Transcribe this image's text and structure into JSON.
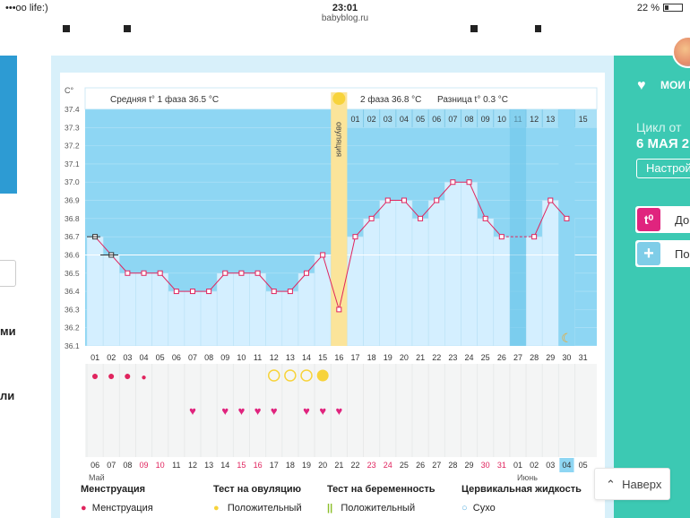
{
  "status": {
    "carrier": "•••oo life:)",
    "time": "23:01",
    "url": "babyblog.ru",
    "battery": "22 %"
  },
  "left_panel": {
    "text_1": "ми",
    "text_2": "ли"
  },
  "chart_header": {
    "phase1": "Средняя t° 1 фаза 36.5 °C",
    "phase2": "2 фаза 36.8 °C",
    "diff": "Разница t° 0.3 °C",
    "ovulation": "овуляция",
    "unit": "C°"
  },
  "chart_data": {
    "type": "line",
    "title": "",
    "ylabel": "C°",
    "ylim": [
      36.1,
      37.4
    ],
    "y_ticks": [
      "36.1",
      "36.2",
      "36.3",
      "36.4",
      "36.5",
      "36.6",
      "36.7",
      "36.8",
      "36.9",
      "37.0",
      "37.1",
      "37.2",
      "37.3",
      "37.4"
    ],
    "cycle_days": [
      "01",
      "02",
      "03",
      "04",
      "05",
      "06",
      "07",
      "08",
      "09",
      "10",
      "11",
      "12",
      "13",
      "14",
      "15",
      "16",
      "17",
      "18",
      "19",
      "20",
      "21",
      "22",
      "23",
      "24",
      "25",
      "26",
      "27",
      "28",
      "29",
      "30",
      "31"
    ],
    "phase2_days": [
      "01",
      "02",
      "03",
      "04",
      "05",
      "06",
      "07",
      "08",
      "09",
      "10",
      "11",
      "12",
      "13",
      "14",
      "15"
    ],
    "dates": [
      "06",
      "07",
      "08",
      "09",
      "10",
      "11",
      "12",
      "13",
      "14",
      "15",
      "16",
      "17",
      "18",
      "19",
      "20",
      "21",
      "22",
      "23",
      "24",
      "25",
      "26",
      "27",
      "28",
      "29",
      "30",
      "31",
      "01",
      "02",
      "03",
      "04",
      "05"
    ],
    "date_red": [
      false,
      false,
      false,
      true,
      true,
      false,
      false,
      false,
      false,
      true,
      true,
      false,
      false,
      false,
      false,
      false,
      false,
      true,
      true,
      false,
      false,
      false,
      false,
      false,
      true,
      true,
      false,
      false,
      false,
      false,
      false
    ],
    "month_may": "Май",
    "month_june": "Июнь",
    "temperatures": [
      36.7,
      36.6,
      36.5,
      36.5,
      36.5,
      36.4,
      36.4,
      36.4,
      36.5,
      36.5,
      36.5,
      36.4,
      36.4,
      36.5,
      36.6,
      36.3,
      36.7,
      36.8,
      36.9,
      36.9,
      36.8,
      36.9,
      37.0,
      37.0,
      36.8,
      36.7,
      null,
      36.7,
      36.9,
      36.8,
      null
    ],
    "coverline": 36.6,
    "ovulation_day": 16,
    "today_day": 30,
    "menstruation_days": [
      1,
      2,
      3,
      4
    ],
    "ovulation_test_days": [
      12,
      13,
      14,
      15
    ],
    "ovulation_test_positive_day": 15,
    "heart_days": [
      7,
      9,
      10,
      11,
      12,
      14,
      15,
      16
    ]
  },
  "legend": {
    "menstruation_title": "Менструация",
    "menstruation_item": "Менструация",
    "ovulation_test_title": "Тест на овуляцию",
    "ovulation_test_item": "Положительный",
    "pregnancy_test_title": "Тест на беременность",
    "pregnancy_test_item": "Положительный",
    "cervical_title": "Цервикальная жидкость",
    "cervical_item": "Сухо"
  },
  "right_panel": {
    "my_label": "МОИ Г",
    "cycle_label": "Цикл от",
    "cycle_date": "6 МАЯ 2",
    "setup_button": "Настрой",
    "add_temp_icon": "t⁰",
    "add_temp_label": "До",
    "add_other_icon": "+",
    "add_other_label": "По"
  },
  "back_to_top": "Наверх",
  "colors": {
    "bg_blue": "#d8f0fa",
    "chart_blue": "#8ed6f3",
    "bar_light": "#d4efff",
    "teal": "#3cc9b3",
    "red": "#e0245e",
    "ovulation": "#fbe49a",
    "yellow": "#f7d33b"
  }
}
